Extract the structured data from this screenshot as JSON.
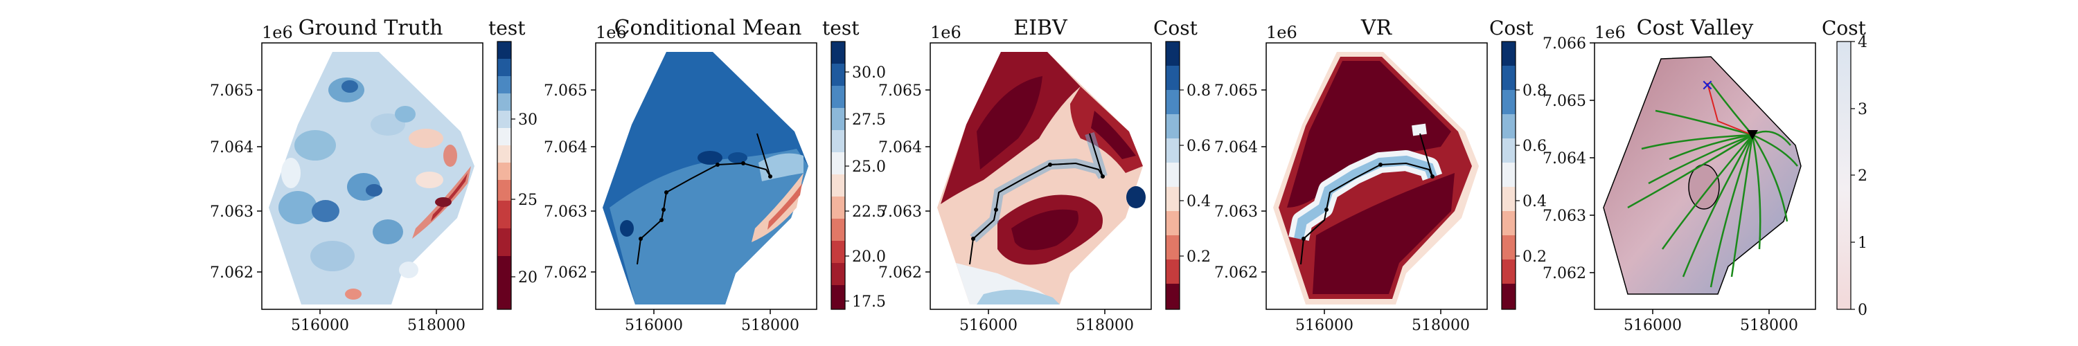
{
  "figure": {
    "panels": [
      {
        "title": "Ground Truth",
        "offset_label": "1e6",
        "colorbar": {
          "label": "test",
          "ticks": [
            "20",
            "25",
            "30"
          ],
          "palette": "RdBu"
        }
      },
      {
        "title": "Conditional Mean",
        "offset_label": "1e6",
        "colorbar": {
          "label": "test",
          "ticks": [
            "17.5",
            "20.0",
            "22.5",
            "25.0",
            "27.5",
            "30.0"
          ],
          "palette": "RdBu"
        }
      },
      {
        "title": "EIBV",
        "offset_label": "1e6",
        "colorbar": {
          "label": "Cost",
          "ticks": [
            "0.2",
            "0.4",
            "0.6",
            "0.8"
          ],
          "palette": "RdBu"
        }
      },
      {
        "title": "VR",
        "offset_label": "1e6",
        "colorbar": {
          "label": "Cost",
          "ticks": [
            "0.2",
            "0.4",
            "0.6",
            "0.8"
          ],
          "palette": "RdBu"
        }
      },
      {
        "title": "Cost Valley",
        "offset_label": "1e6",
        "colorbar": {
          "label": "Cost",
          "ticks": [
            "0",
            "1",
            "2",
            "3",
            "4"
          ],
          "palette": "continuous"
        }
      }
    ]
  },
  "chart_data": [
    {
      "type": "heatmap",
      "title": "Ground Truth",
      "x_ticks": [
        "516000",
        "518000"
      ],
      "y_ticks": [
        "7.062",
        "7.063",
        "7.064",
        "7.065"
      ],
      "x_offset_label": "1e6",
      "xlim": [
        514800,
        519300
      ],
      "ylim": [
        7.0614,
        7.0658
      ],
      "colorbar_label": "test",
      "colorbar_range": [
        19,
        32
      ],
      "colorbar_ticks": [
        20,
        25,
        30
      ]
    },
    {
      "type": "heatmap",
      "title": "Conditional Mean",
      "x_ticks": [
        "516000",
        "518000"
      ],
      "y_ticks": [
        "7.062",
        "7.063",
        "7.064",
        "7.065"
      ],
      "xlim": [
        514800,
        519300
      ],
      "ylim": [
        7.0614,
        7.0658
      ],
      "colorbar_label": "test",
      "colorbar_range": [
        17,
        31.5
      ],
      "colorbar_ticks": [
        17.5,
        20.0,
        22.5,
        25.0,
        27.5,
        30.0
      ],
      "path": [
        [
          515450,
          7.0622
        ],
        [
          515500,
          7.0628
        ],
        [
          515850,
          7.063
        ],
        [
          515900,
          7.0632
        ],
        [
          515950,
          7.0634
        ],
        [
          516250,
          7.0637
        ],
        [
          516600,
          7.0639
        ],
        [
          517050,
          7.0639
        ],
        [
          517450,
          7.064
        ],
        [
          517900,
          7.0637
        ],
        [
          518000,
          7.0636
        ],
        [
          517700,
          7.0643
        ]
      ]
    },
    {
      "type": "heatmap",
      "title": "EIBV",
      "x_ticks": [
        "516000",
        "518000"
      ],
      "y_ticks": [
        "7.062",
        "7.063",
        "7.064",
        "7.065"
      ],
      "xlim": [
        514800,
        519300
      ],
      "ylim": [
        7.0614,
        7.0658
      ],
      "colorbar_label": "Cost",
      "colorbar_range": [
        0,
        1
      ],
      "colorbar_ticks": [
        0.2,
        0.4,
        0.6,
        0.8
      ],
      "path": [
        [
          515450,
          7.0622
        ],
        [
          515500,
          7.0628
        ],
        [
          515850,
          7.063
        ],
        [
          515900,
          7.0632
        ],
        [
          515950,
          7.0634
        ],
        [
          516250,
          7.0637
        ],
        [
          516600,
          7.0639
        ],
        [
          517050,
          7.0639
        ],
        [
          517450,
          7.064
        ],
        [
          517900,
          7.0637
        ],
        [
          518000,
          7.0636
        ],
        [
          517700,
          7.0643
        ]
      ]
    },
    {
      "type": "heatmap",
      "title": "VR",
      "x_ticks": [
        "516000",
        "518000"
      ],
      "y_ticks": [
        "7.062",
        "7.063",
        "7.064",
        "7.065"
      ],
      "xlim": [
        514800,
        519300
      ],
      "ylim": [
        7.0614,
        7.0658
      ],
      "colorbar_label": "Cost",
      "colorbar_range": [
        0,
        1
      ],
      "colorbar_ticks": [
        0.2,
        0.4,
        0.6,
        0.8
      ],
      "path": [
        [
          515450,
          7.0622
        ],
        [
          515500,
          7.0628
        ],
        [
          515850,
          7.063
        ],
        [
          515900,
          7.0632
        ],
        [
          515950,
          7.0634
        ],
        [
          516250,
          7.0637
        ],
        [
          516600,
          7.0639
        ],
        [
          517050,
          7.0639
        ],
        [
          517450,
          7.064
        ],
        [
          517900,
          7.0637
        ],
        [
          518000,
          7.0636
        ],
        [
          517700,
          7.0643
        ]
      ]
    },
    {
      "type": "heatmap",
      "title": "Cost Valley",
      "x_ticks": [
        "516000",
        "518000"
      ],
      "y_ticks": [
        "7.062",
        "7.063",
        "7.064",
        "7.065",
        "7.066"
      ],
      "xlim": [
        514800,
        519300
      ],
      "ylim": [
        7.0614,
        7.066
      ],
      "colorbar_label": "Cost",
      "colorbar_range": [
        0,
        4
      ],
      "colorbar_ticks": [
        0,
        1,
        2,
        3,
        4
      ],
      "current_location": [
        517300,
        7.0646
      ],
      "previous_location": [
        516700,
        7.0653
      ]
    }
  ]
}
